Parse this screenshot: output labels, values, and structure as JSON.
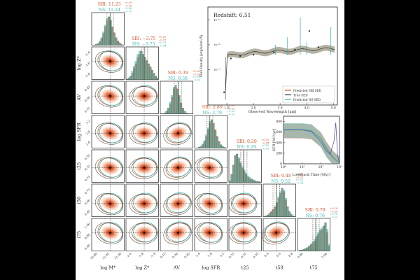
{
  "figure": {
    "background": "#000000",
    "panel_bg": "#ffffff"
  },
  "colors": {
    "sbi": "#d0532a",
    "ns": "#3fb6b0",
    "truth": "#222222",
    "grid_line": "#555555"
  },
  "chart_data": [
    {
      "type": "corner",
      "parameters": [
        "log M*",
        "log Z*",
        "AV",
        "log SFR",
        "t25",
        "t50",
        "t75"
      ],
      "axis_labels": [
        "log M*",
        "log Z*",
        "AV",
        "log SFR",
        "t25",
        "t50",
        "t75"
      ],
      "ranges": [
        [
          10.6,
          11.7
        ],
        [
          -2.0,
          -1.5
        ],
        [
          0.1,
          0.65
        ],
        [
          2.3,
          3.4
        ],
        [
          0.1,
          0.5
        ],
        [
          0.3,
          0.8
        ],
        [
          0.5,
          1.0
        ]
      ],
      "ticks": [
        [
          "10.80",
          "11.05",
          "11.30",
          "11.55"
        ],
        [
          "-1.8",
          "-1.6",
          "-1.4",
          "-1.2"
        ],
        [
          "0.15",
          "0.30",
          "0.45",
          "0.60"
        ],
        [
          "2.4",
          "2.8",
          "3.2"
        ],
        [
          "0.15",
          "0.25",
          "0.35",
          "0.45"
        ],
        [
          "0.45",
          "0.60",
          "0.75"
        ],
        [
          "0.60",
          "0.80",
          "1.00"
        ]
      ],
      "x_tick_labels": [
        [
          "10.80",
          "11.05",
          "11.30"
        ],
        [
          "-2.0",
          "-1.8",
          "-1.6"
        ],
        [
          "0.15",
          "0.30",
          "0.45"
        ],
        [
          "2.4",
          "2.8",
          "3.2"
        ],
        [
          "0.15",
          "0.25",
          "0.35"
        ],
        [
          "0.4",
          "0.6",
          "0.8"
        ],
        [
          "0.80",
          "1.00"
        ]
      ],
      "y_tick_labels": [
        [],
        [
          "-1.8",
          "-1.6",
          "-1.4"
        ],
        [
          "0.15",
          "0.30",
          "0.45"
        ],
        [
          "2.4",
          "2.8",
          "3.2"
        ],
        [
          "0.15",
          "0.25",
          "0.35"
        ],
        [
          "0.45",
          "0.60",
          "0.75"
        ],
        [
          "0.60",
          "0.80",
          "1.00"
        ]
      ],
      "truth": [
        11.22,
        -1.72,
        0.4,
        2.8,
        0.28,
        0.5,
        0.78
      ],
      "sbi": {
        "label": "SBI",
        "median": [
          11.23,
          -3.75,
          0.39,
          2.8,
          0.29,
          0.48,
          0.78
        ],
        "titles": [
          "SBI: 11.23^{+0.09}_{-0.10}",
          "SBI: -3.75^{+0.47}_{-0.37}",
          "SBI: 0.39^{+0.02}_{-0.02}",
          "SBI: 2.80^{+0.03}_{-0.03}",
          "SBI: 0.29^{+0.10}_{-0.08}",
          "SBI: 0.48^{+0.27}_{-0.25}",
          "SBI: 0.78^{+0.18}_{-0.28}"
        ],
        "title_text": [
          "SBI: 11.23",
          "SBI: −3.75",
          "SBI: 0.39",
          "SBI: 2.80",
          "SBI: 0.29",
          "SBI: 0.48",
          "SBI: 0.78"
        ],
        "title_sup": [
          "+0.09",
          "+0.47",
          "+0.02",
          "+0.03",
          "+0.10",
          "+0.27",
          "+0.18"
        ],
        "title_sub": [
          "−0.10",
          "−0.37",
          "−0.02",
          "−0.03",
          "−0.08",
          "−0.25",
          "−0.28"
        ]
      },
      "ns": {
        "label": "NS",
        "median": [
          11.24,
          -3.75,
          0.38,
          2.79,
          0.29,
          0.52,
          0.76
        ],
        "title_text": [
          "NS: 11.24",
          "NS: −3.75",
          "NS: 0.38",
          "NS: 2.79",
          "NS: 0.29",
          "NS: 0.52",
          "NS: 0.76"
        ],
        "title_sup": [
          "+0.08",
          "+0.31",
          "+0.02",
          "+0.03",
          "+0.10",
          "+0.22",
          "+0.16"
        ],
        "title_sub": [
          "−0.10",
          "−0.34",
          "−0.02",
          "−0.03",
          "−0.08",
          "−0.24",
          "−0.23"
        ]
      },
      "histograms": {
        "sbi": [
          [
            0,
            0,
            1,
            2,
            4,
            8,
            14,
            22,
            30,
            34,
            30,
            22,
            15,
            9,
            5,
            3,
            1,
            0
          ],
          [
            0,
            1,
            2,
            4,
            7,
            10,
            14,
            16,
            18,
            16,
            14,
            12,
            10,
            8,
            6,
            4,
            2,
            1
          ],
          [
            0,
            0,
            1,
            3,
            6,
            12,
            20,
            30,
            34,
            30,
            22,
            13,
            7,
            3,
            1,
            0,
            0,
            0
          ],
          [
            0,
            0,
            1,
            2,
            4,
            8,
            14,
            22,
            30,
            34,
            30,
            22,
            14,
            8,
            4,
            2,
            1,
            0
          ],
          [
            2,
            10,
            22,
            34,
            36,
            30,
            24,
            18,
            14,
            10,
            7,
            5,
            4,
            3,
            2,
            1,
            1,
            0
          ],
          [
            0,
            1,
            2,
            4,
            6,
            9,
            12,
            16,
            22,
            28,
            34,
            30,
            20,
            12,
            6,
            3,
            1,
            0
          ],
          [
            0,
            1,
            1,
            2,
            3,
            4,
            6,
            8,
            10,
            12,
            16,
            20,
            24,
            26,
            30,
            34,
            22,
            6
          ]
        ],
        "ns": [
          [
            0,
            0,
            1,
            2,
            5,
            9,
            16,
            24,
            32,
            34,
            28,
            20,
            13,
            8,
            4,
            2,
            1,
            0
          ],
          [
            0,
            1,
            2,
            5,
            8,
            11,
            15,
            17,
            17,
            15,
            13,
            11,
            9,
            7,
            5,
            3,
            2,
            1
          ],
          [
            0,
            0,
            1,
            3,
            7,
            14,
            22,
            32,
            34,
            28,
            20,
            12,
            6,
            3,
            1,
            0,
            0,
            0
          ],
          [
            0,
            0,
            1,
            2,
            5,
            9,
            16,
            24,
            32,
            34,
            28,
            20,
            13,
            7,
            4,
            2,
            1,
            0
          ],
          [
            2,
            9,
            20,
            32,
            34,
            30,
            24,
            19,
            15,
            11,
            8,
            6,
            4,
            3,
            2,
            1,
            1,
            0
          ],
          [
            0,
            1,
            2,
            3,
            5,
            8,
            12,
            17,
            24,
            30,
            34,
            32,
            22,
            12,
            6,
            3,
            1,
            0
          ],
          [
            0,
            1,
            1,
            2,
            3,
            4,
            6,
            8,
            11,
            14,
            18,
            22,
            26,
            28,
            30,
            34,
            26,
            8
          ]
        ]
      }
    },
    {
      "type": "line",
      "title": "Redshift: 6.51",
      "xlabel": "Observed Wavelength [μm]",
      "ylabel": "Flux Density [erg/s/cm²/Å]",
      "xlim": [
        0.5,
        5.1
      ],
      "x_ticks": [
        "1.0",
        "2.0",
        "3.0",
        "4.0",
        "5.0"
      ],
      "x_tick_values": [
        1.0,
        2.0,
        3.0,
        4.0,
        5.0
      ],
      "y_ticks": [
        "10⁻¹⁹",
        "10⁻²⁰",
        "10⁻²¹"
      ],
      "y_tick_values": [
        -19,
        -20,
        -21
      ],
      "ylim_log": [
        -22.3,
        -18.6
      ],
      "legend": [
        "Predicted SBI SED",
        "True SED",
        "Predicted NS SED"
      ],
      "legend_position": "lower-right",
      "series": [
        {
          "name": "Predicted SBI SED",
          "color": "#d0532a"
        },
        {
          "name": "True SED",
          "color": "#333333"
        },
        {
          "name": "Predicted NS SED",
          "color": "#3fb6b0"
        }
      ],
      "photometry_x": [
        0.9,
        1.15,
        1.5,
        2.0,
        2.77,
        3.56,
        4.1,
        4.44
      ],
      "photometry_logy": [
        -21.9,
        -20.55,
        -20.45,
        -20.4,
        -20.3,
        -20.2,
        -19.45,
        -20.1
      ]
    },
    {
      "type": "line",
      "title": "",
      "xlabel": "Lookback Time [Myr]",
      "ylabel": "SFR [M☉/yr]",
      "xlim_log": [
        0,
        3
      ],
      "ylim": [
        0,
        900
      ],
      "x_ticks": [
        "10⁰",
        "10¹",
        "10²",
        "10³"
      ],
      "x_tick_values": [
        0,
        1,
        2,
        3
      ],
      "y_ticks": [
        "0",
        "200",
        "400",
        "600",
        "800"
      ],
      "y_tick_values": [
        0,
        200,
        400,
        600,
        800
      ],
      "series": [
        {
          "name": "SBI",
          "color": "#d0532a",
          "x_log": [
            0,
            0.5,
            1,
            1.5,
            2,
            2.3,
            2.6,
            2.85,
            3
          ],
          "y": [
            640,
            640,
            640,
            620,
            480,
            300,
            150,
            60,
            20
          ]
        },
        {
          "name": "NS",
          "color": "#3fb6b0",
          "x_log": [
            0,
            0.5,
            1,
            1.5,
            2,
            2.3,
            2.6,
            2.85,
            3
          ],
          "y": [
            650,
            650,
            650,
            630,
            470,
            280,
            130,
            50,
            15
          ]
        },
        {
          "name": "True",
          "color": "#444444",
          "x_log": [
            0,
            0.5,
            1,
            1.5,
            2,
            2.3,
            2.5,
            2.7,
            2.8,
            2.9,
            3
          ],
          "y": [
            640,
            640,
            640,
            610,
            420,
            240,
            180,
            420,
            780,
            160,
            0
          ]
        }
      ]
    }
  ]
}
